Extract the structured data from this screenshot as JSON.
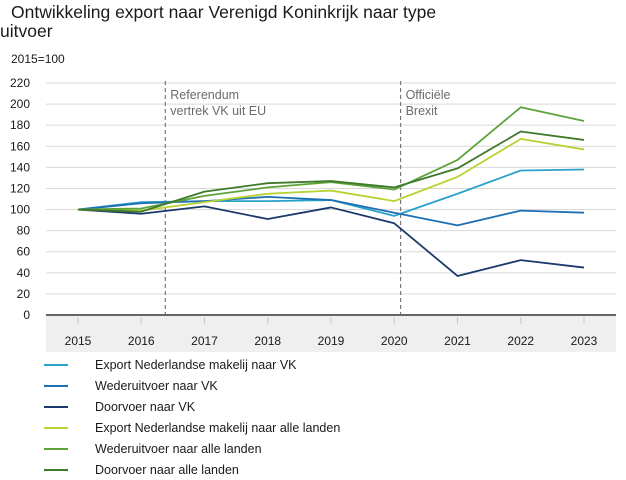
{
  "chart_data": {
    "type": "line",
    "title": "Ontwikkeling export naar Verenigd Koninkrijk naar type uitvoer",
    "title_lines": [
      "Ontwikkeling export naar Verenigd Koninkrijk naar type",
      "uitvoer"
    ],
    "ylabel": "2015=100",
    "xlabel": "",
    "ylim": [
      0,
      220
    ],
    "yticks": [
      0,
      20,
      40,
      60,
      80,
      100,
      120,
      140,
      160,
      180,
      200,
      220
    ],
    "grid": true,
    "legend_position": "bottom",
    "categories": [
      "2015",
      "2016",
      "2017",
      "2018",
      "2019",
      "2020",
      "2021",
      "2022",
      "2023"
    ],
    "annotations": [
      {
        "x_between": [
          "2016",
          "2017"
        ],
        "x_fraction": 0.38,
        "lines": [
          "Referendum",
          "vertrek VK uit EU"
        ]
      },
      {
        "x_between": [
          "2020",
          "2021"
        ],
        "x_fraction": 0.1,
        "lines": [
          "Officiële",
          "Brexit"
        ]
      }
    ],
    "series": [
      {
        "name": "Export Nederlandse makelij naar VK",
        "color": "#2aa3c9",
        "values": [
          100,
          107,
          108,
          108,
          109,
          94,
          115,
          137,
          138
        ]
      },
      {
        "name": "Wederuitvoer naar VK",
        "color": "#1f6fb3",
        "values": [
          100,
          106,
          108,
          112,
          109,
          97,
          85,
          99,
          97
        ]
      },
      {
        "name": "Doorvoer naar VK",
        "color": "#1b3a6b",
        "values": [
          100,
          96,
          103,
          91,
          102,
          87,
          37,
          52,
          45
        ]
      },
      {
        "name": "Export Nederlandse makelij naar alle landen",
        "color": "#b9d233",
        "values": [
          100,
          99,
          107,
          115,
          118,
          108,
          131,
          167,
          157
        ]
      },
      {
        "name": "Wederuitvoer naar alle landen",
        "color": "#5ea33a",
        "values": [
          100,
          101,
          113,
          121,
          126,
          119,
          147,
          197,
          184
        ]
      },
      {
        "name": "Doorvoer naar alle landen",
        "color": "#3f7a2b",
        "values": [
          100,
          98,
          117,
          125,
          127,
          121,
          139,
          174,
          166
        ]
      }
    ]
  }
}
